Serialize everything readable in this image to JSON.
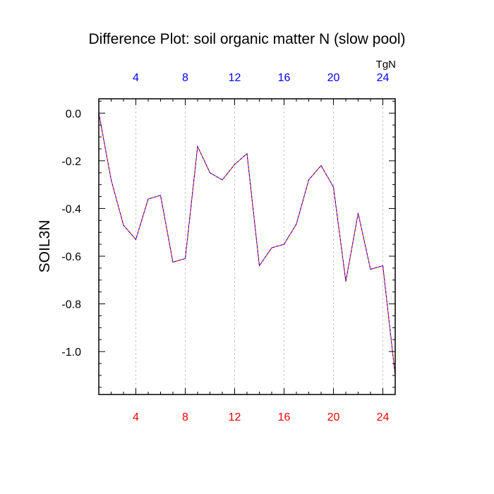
{
  "chart_data": {
    "type": "line",
    "title": "Difference Plot: soil organic matter N (slow pool)",
    "ylabel": "SOIL3N",
    "units": "TgN",
    "xlabel": "",
    "xlim": [
      1,
      25
    ],
    "ylim": [
      -1.18,
      0.06
    ],
    "x_ticks": [
      4,
      8,
      12,
      16,
      20,
      24
    ],
    "x_tick_labels": [
      "4",
      "8",
      "12",
      "16",
      "20",
      "24"
    ],
    "y_ticks": [
      0.0,
      -0.2,
      -0.4,
      -0.6,
      -0.8,
      -1.0
    ],
    "y_tick_labels": [
      "0.0",
      "-0.2",
      "-0.4",
      "-0.6",
      "-0.8",
      "-1.0"
    ],
    "grid": "vertical dashed at major x ticks",
    "colors": {
      "bottom_tick_labels": "#ff0000",
      "top_tick_labels": "#0000ff",
      "series_dash_a": "#0000ff",
      "series_dash_b": "#ff0000",
      "grid": "#bbbbbb",
      "axis": "#000000"
    },
    "series": [
      {
        "name": "difference",
        "x": [
          1,
          2,
          3,
          4,
          5,
          6,
          7,
          8,
          9,
          10,
          11,
          12,
          13,
          14,
          15,
          16,
          17,
          18,
          19,
          20,
          21,
          22,
          23,
          24,
          25
        ],
        "values": [
          0.0,
          -0.28,
          -0.47,
          -0.53,
          -0.36,
          -0.345,
          -0.625,
          -0.61,
          -0.14,
          -0.25,
          -0.28,
          -0.215,
          -0.17,
          -0.64,
          -0.565,
          -0.55,
          -0.465,
          -0.28,
          -0.22,
          -0.31,
          -0.705,
          -0.42,
          -0.655,
          -0.64,
          -1.1
        ]
      }
    ]
  }
}
